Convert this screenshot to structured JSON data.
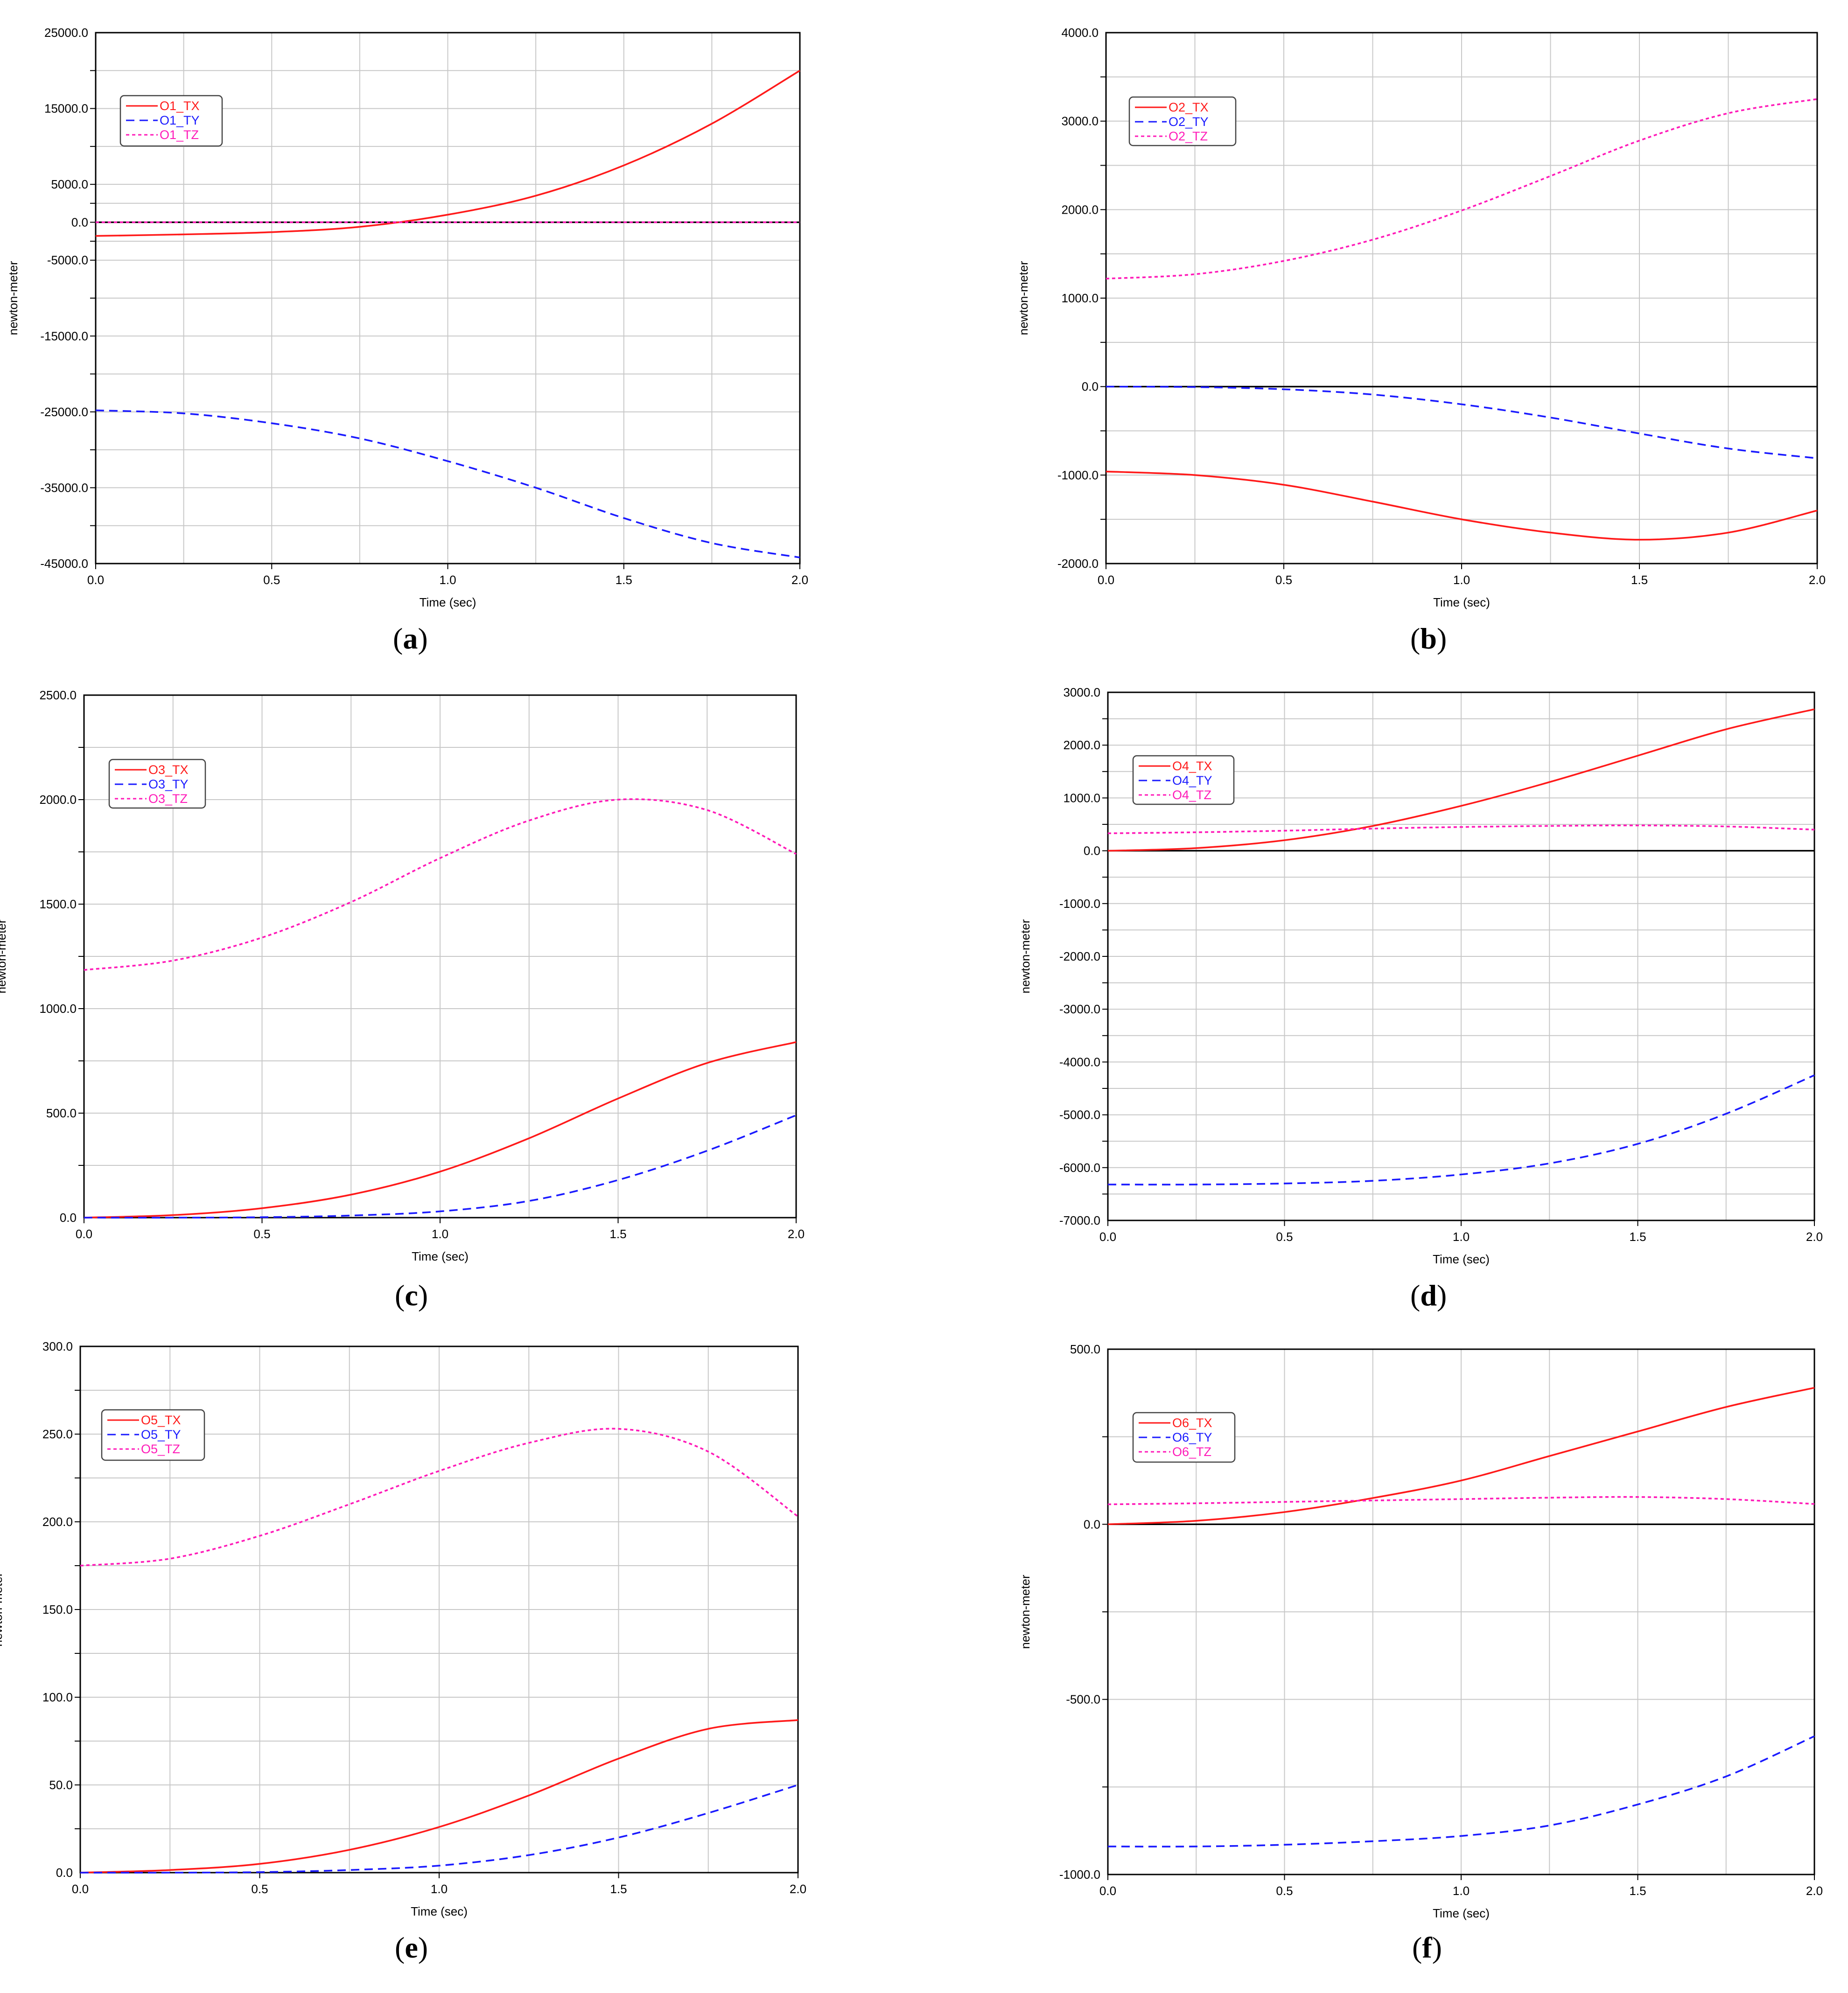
{
  "colors": {
    "tx": "#ff1a1a",
    "ty": "#1a1aff",
    "tz": "#ff1ab8",
    "grid": "#c8c8c8",
    "zero": "#000000"
  },
  "x_tick_labels": [
    "0.0",
    "0.5",
    "1.0",
    "1.5",
    "2.0"
  ],
  "chart_data": [
    {
      "type": "line",
      "panel": "a",
      "xlabel": "Time (sec)",
      "ylabel": "newton-meter",
      "xlim": [
        0,
        2
      ],
      "ylim": [
        -45000,
        25000
      ],
      "y_tick_labels": [
        "25000.0",
        "15000.0",
        "5000.0",
        "0.0",
        "-5000.0",
        "-15000.0",
        "-25000.0",
        "-35000.0",
        "-45000.0"
      ],
      "legend": [
        "O1_TX",
        "O1_TY",
        "O1_TZ"
      ],
      "x": [
        0,
        0.25,
        0.5,
        0.75,
        1.0,
        1.25,
        1.5,
        1.75,
        2.0
      ],
      "series": [
        {
          "name": "O1_TX",
          "values": [
            -1800,
            -1600,
            -1300,
            -600,
            1000,
            3500,
            7500,
            13000,
            20000
          ]
        },
        {
          "name": "O1_TY",
          "values": [
            -24800,
            -25200,
            -26500,
            -28500,
            -31500,
            -35000,
            -39000,
            -42300,
            -44200
          ]
        },
        {
          "name": "O1_TZ",
          "values": [
            0,
            0,
            0,
            0,
            0,
            0,
            0,
            0,
            0
          ]
        }
      ]
    },
    {
      "type": "line",
      "panel": "b",
      "xlabel": "Time (sec)",
      "ylabel": "newton-meter",
      "xlim": [
        0,
        2
      ],
      "ylim": [
        -2000,
        4000
      ],
      "y_tick_labels": [
        "4000.0",
        "3000.0",
        "2000.0",
        "1000.0",
        "0.0",
        "-1000.0",
        "-2000.0"
      ],
      "legend": [
        "O2_TX",
        "O2_TY",
        "O2_TZ"
      ],
      "x": [
        0,
        0.25,
        0.5,
        0.75,
        1.0,
        1.25,
        1.5,
        1.75,
        2.0
      ],
      "series": [
        {
          "name": "O2_TX",
          "values": [
            -960,
            -1000,
            -1110,
            -1300,
            -1500,
            -1650,
            -1730,
            -1650,
            -1400
          ]
        },
        {
          "name": "O2_TY",
          "values": [
            0,
            -5,
            -30,
            -90,
            -200,
            -350,
            -530,
            -700,
            -810
          ]
        },
        {
          "name": "O2_TZ",
          "values": [
            1220,
            1270,
            1420,
            1660,
            1990,
            2380,
            2780,
            3090,
            3250
          ]
        }
      ]
    },
    {
      "type": "line",
      "panel": "c",
      "xlabel": "Time (sec)",
      "ylabel": "newton-meter",
      "xlim": [
        0,
        2
      ],
      "ylim": [
        0,
        2500
      ],
      "y_tick_labels": [
        "2500.0",
        "2000.0",
        "1500.0",
        "1000.0",
        "500.0",
        "0.0"
      ],
      "legend": [
        "O3_TX",
        "O3_TY",
        "O3_TZ"
      ],
      "x": [
        0,
        0.25,
        0.5,
        0.75,
        1.0,
        1.25,
        1.5,
        1.75,
        2.0
      ],
      "series": [
        {
          "name": "O3_TX",
          "values": [
            0,
            12,
            45,
            110,
            220,
            380,
            570,
            740,
            840
          ]
        },
        {
          "name": "O3_TY",
          "values": [
            0,
            0,
            2,
            10,
            30,
            80,
            180,
            320,
            490
          ]
        },
        {
          "name": "O3_TZ",
          "values": [
            1185,
            1230,
            1340,
            1510,
            1720,
            1900,
            2000,
            1950,
            1740
          ]
        }
      ]
    },
    {
      "type": "line",
      "panel": "d",
      "xlabel": "Time (sec)",
      "ylabel": "newton-meter",
      "xlim": [
        0,
        2
      ],
      "ylim": [
        -7000,
        3000
      ],
      "y_tick_labels": [
        "3000.0",
        "2000.0",
        "1000.0",
        "0.0",
        "-1000.0",
        "-2000.0",
        "-3000.0",
        "-4000.0",
        "-5000.0",
        "-6000.0",
        "-7000.0"
      ],
      "legend": [
        "O4_TX",
        "O4_TY",
        "O4_TZ"
      ],
      "x": [
        0,
        0.25,
        0.5,
        0.75,
        1.0,
        1.25,
        1.5,
        1.75,
        2.0
      ],
      "series": [
        {
          "name": "O4_TX",
          "values": [
            0,
            50,
            200,
            470,
            850,
            1300,
            1800,
            2300,
            2680
          ]
        },
        {
          "name": "O4_TY",
          "values": [
            -6320,
            -6320,
            -6300,
            -6250,
            -6130,
            -5920,
            -5550,
            -4980,
            -4250
          ]
        },
        {
          "name": "O4_TZ",
          "values": [
            330,
            350,
            380,
            420,
            450,
            470,
            480,
            460,
            400
          ]
        }
      ]
    },
    {
      "type": "line",
      "panel": "e",
      "xlabel": "Time (sec)",
      "ylabel": "newton-meter",
      "xlim": [
        0,
        2
      ],
      "ylim": [
        0,
        300
      ],
      "y_tick_labels": [
        "300.0",
        "250.0",
        "200.0",
        "150.0",
        "100.0",
        "50.0",
        "0.0"
      ],
      "legend": [
        "O5_TX",
        "O5_TY",
        "O5_TZ"
      ],
      "x": [
        0,
        0.25,
        0.5,
        0.75,
        1.0,
        1.25,
        1.5,
        1.75,
        2.0
      ],
      "series": [
        {
          "name": "O5_TX",
          "values": [
            0,
            1.5,
            5,
            13,
            26,
            44,
            65,
            82,
            87
          ]
        },
        {
          "name": "O5_TY",
          "values": [
            0,
            0,
            0.3,
            1.5,
            4,
            10,
            20,
            34,
            50
          ]
        },
        {
          "name": "O5_TZ",
          "values": [
            175,
            179,
            192,
            210,
            229,
            245,
            253,
            240,
            203
          ]
        }
      ]
    },
    {
      "type": "line",
      "panel": "f",
      "xlabel": "Time (sec)",
      "ylabel": "newton-meter",
      "xlim": [
        0,
        2
      ],
      "ylim": [
        -1000,
        500
      ],
      "y_tick_labels": [
        "500.0",
        "0.0",
        "-500.0",
        "-1000.0"
      ],
      "legend": [
        "O6_TX",
        "O6_TY",
        "O6_TZ"
      ],
      "x": [
        0,
        0.25,
        0.5,
        0.75,
        1.0,
        1.25,
        1.5,
        1.75,
        2.0
      ],
      "series": [
        {
          "name": "O6_TX",
          "values": [
            0,
            10,
            35,
            75,
            125,
            195,
            265,
            335,
            390
          ]
        },
        {
          "name": "O6_TY",
          "values": [
            -920,
            -920,
            -915,
            -905,
            -890,
            -860,
            -800,
            -720,
            -605
          ]
        },
        {
          "name": "O6_TZ",
          "values": [
            57,
            60,
            64,
            68,
            72,
            76,
            78,
            72,
            58
          ]
        }
      ]
    }
  ],
  "captions": [
    {
      "open": "(",
      "letter": "a",
      "close": ")"
    },
    {
      "open": "(",
      "letter": "b",
      "close": ")"
    },
    {
      "open": "(",
      "letter": "c",
      "close": ")"
    },
    {
      "open": "(",
      "letter": "d",
      "close": ")"
    },
    {
      "open": "(",
      "letter": "e",
      "close": ")"
    },
    {
      "open": "(",
      "letter": "f",
      "close": ")"
    }
  ]
}
